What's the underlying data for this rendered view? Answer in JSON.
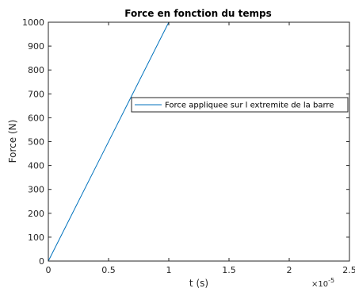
{
  "chart_data": {
    "type": "line",
    "title": "Force en fonction du temps",
    "xlabel": "t (s)",
    "ylabel": "Force (N)",
    "x_multiplier": "×10",
    "x_multiplier_exp": "-5",
    "xlim": [
      0,
      2.5
    ],
    "ylim": [
      0,
      1000
    ],
    "xticks": [
      0,
      0.5,
      1,
      1.5,
      2,
      2.5
    ],
    "xtick_labels": [
      "0",
      "0.5",
      "1",
      "1.5",
      "2",
      "2.5"
    ],
    "yticks": [
      0,
      100,
      200,
      300,
      400,
      500,
      600,
      700,
      800,
      900,
      1000
    ],
    "ytick_labels": [
      "0",
      "100",
      "200",
      "300",
      "400",
      "500",
      "600",
      "700",
      "800",
      "900",
      "1000"
    ],
    "grid": false,
    "legend_position": "right-middle",
    "series": [
      {
        "name": "Force appliquee sur l extremite de la barre",
        "color": "#0072BD",
        "x": [
          0,
          1,
          2
        ],
        "y": [
          0,
          1000,
          1000
        ]
      }
    ]
  }
}
